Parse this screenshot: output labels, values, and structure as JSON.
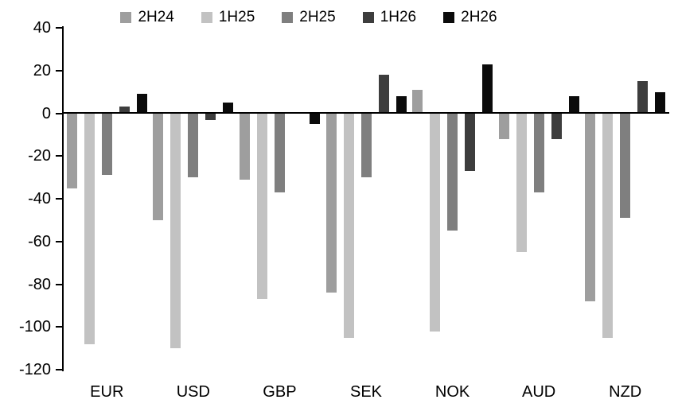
{
  "chart_data": {
    "type": "bar",
    "title": "",
    "xlabel": "",
    "ylabel": "",
    "categories": [
      "EUR",
      "USD",
      "GBP",
      "SEK",
      "NOK",
      "AUD",
      "NZD"
    ],
    "series": [
      {
        "name": "2H24",
        "color": "#9e9e9e",
        "values": [
          -35,
          -50,
          -31,
          -84,
          11,
          -12,
          -88
        ]
      },
      {
        "name": "1H25",
        "color": "#c2c2c2",
        "values": [
          -108,
          -110,
          -87,
          -105,
          -102,
          -65,
          -105
        ]
      },
      {
        "name": "2H25",
        "color": "#7f7f7f",
        "values": [
          -29,
          -30,
          -37,
          -30,
          -55,
          -37,
          -49
        ]
      },
      {
        "name": "1H26",
        "color": "#3d3d3d",
        "values": [
          3,
          -3,
          0,
          18,
          -27,
          -12,
          15
        ]
      },
      {
        "name": "2H26",
        "color": "#0b0b0b",
        "values": [
          9,
          5,
          -5,
          8,
          23,
          8,
          10
        ]
      }
    ],
    "ylim": [
      -120,
      40
    ],
    "yticks": [
      40,
      20,
      0,
      -20,
      -40,
      -60,
      -80,
      -100,
      -120
    ],
    "legend_position": "top",
    "grid": false
  }
}
